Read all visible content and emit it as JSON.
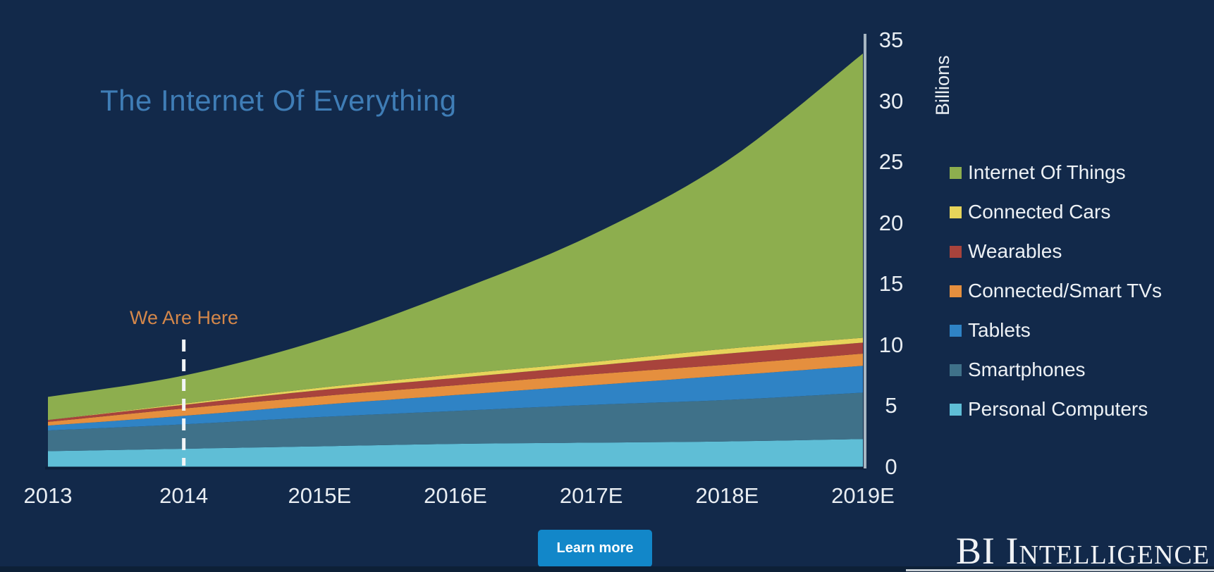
{
  "slide": {
    "background": "#12294a"
  },
  "title": {
    "text": "The Internet Of Everything",
    "color": "#3f7db6"
  },
  "annotation": {
    "text": "We Are Here",
    "color": "#d4874a"
  },
  "button": {
    "label": "Learn more",
    "background": "#1287c9",
    "text_color": "#ffffff"
  },
  "logo": {
    "text": "BI Intelligence"
  },
  "chart_data": {
    "type": "area",
    "stacked": true,
    "title": "The Internet Of Everything",
    "categories": [
      "2013",
      "2014",
      "2015E",
      "2016E",
      "2017E",
      "2018E",
      "2019E"
    ],
    "ylabel": "Billions",
    "xlabel": "",
    "ylim": [
      0,
      35
    ],
    "y_ticks": [
      35,
      30,
      25,
      20,
      15,
      10,
      5,
      0
    ],
    "grid": false,
    "legend_position": "right",
    "legend_order": "top-is-last-series",
    "annotation": {
      "text": "We Are Here",
      "at_category": "2014",
      "line_style": "dashed-white"
    },
    "series": [
      {
        "name": "Personal Computers",
        "color": "#5fbed6",
        "values": [
          1.3,
          1.5,
          1.7,
          1.9,
          2.0,
          2.1,
          2.3
        ]
      },
      {
        "name": "Smartphones",
        "color": "#3f7189",
        "values": [
          1.7,
          2.0,
          2.4,
          2.7,
          3.1,
          3.4,
          3.8
        ]
      },
      {
        "name": "Tablets",
        "color": "#2f83c5",
        "values": [
          0.4,
          0.7,
          1.0,
          1.3,
          1.6,
          2.0,
          2.2
        ]
      },
      {
        "name": "Connected/Smart TVs",
        "color": "#e58f3e",
        "values": [
          0.3,
          0.6,
          0.7,
          0.8,
          0.9,
          0.9,
          1.0
        ]
      },
      {
        "name": "Wearables",
        "color": "#a8433c",
        "values": [
          0.15,
          0.3,
          0.5,
          0.6,
          0.7,
          0.9,
          0.9
        ]
      },
      {
        "name": "Connected Cars",
        "color": "#e6d45a",
        "values": [
          0.0,
          0.1,
          0.2,
          0.3,
          0.3,
          0.4,
          0.4
        ]
      },
      {
        "name": "Internet Of Things",
        "color": "#8dae4e",
        "values": [
          1.9,
          2.3,
          3.9,
          6.8,
          10.4,
          15.4,
          23.3
        ]
      }
    ],
    "stacked_totals": [
      5.75,
      7.5,
      10.4,
      14.4,
      19.0,
      25.1,
      33.9
    ]
  }
}
